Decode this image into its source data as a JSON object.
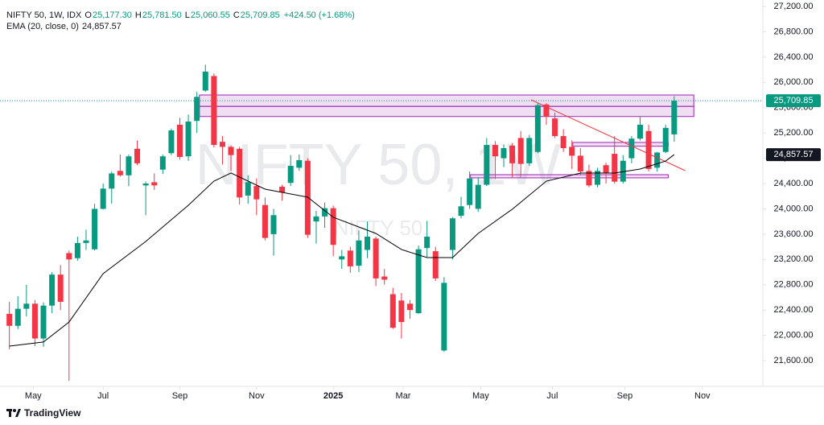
{
  "chart_data": {
    "type": "candlestick",
    "legend_row": [
      {
        "label": "O",
        "value": "25,177.30"
      },
      {
        "label": "H",
        "value": "25,781.50"
      },
      {
        "label": "L",
        "value": "25,060.55"
      },
      {
        "label": "C",
        "value": "25,709.85"
      }
    ],
    "symbol": "NIFTY 50, 1W, IDX",
    "change": "+424.50 (+1.68%)",
    "watermark": "NIFTY 50, 1W",
    "watermark_sub": "NIFTY 50",
    "footer": "TradingView",
    "up_color": "#089981",
    "down_color": "#f23645",
    "grid": false,
    "xlim": [
      -1.1,
      88.4
    ],
    "ylim": [
      21193,
      27302
    ],
    "xticks": [
      {
        "value": 2.8,
        "label": "May"
      },
      {
        "value": 11.0,
        "label": "Jul"
      },
      {
        "value": 20.0,
        "label": "Sep"
      },
      {
        "value": 29.0,
        "label": "Nov"
      },
      {
        "value": 38.0,
        "label": "2025"
      },
      {
        "value": 46.2,
        "label": "Mar"
      },
      {
        "value": 55.3,
        "label": "May"
      },
      {
        "value": 63.7,
        "label": "Jul"
      },
      {
        "value": 72.2,
        "label": "Sep"
      },
      {
        "value": 81.3,
        "label": "Nov"
      }
    ],
    "yticks": [
      {
        "value": 21600,
        "label": "21,600.00"
      },
      {
        "value": 22000,
        "label": "22,000.00"
      },
      {
        "value": 22400,
        "label": "22,400.00"
      },
      {
        "value": 22800,
        "label": "22,800.00"
      },
      {
        "value": 23200,
        "label": "23,200.00"
      },
      {
        "value": 23600,
        "label": "23,600.00"
      },
      {
        "value": 24000,
        "label": "24,000.00"
      },
      {
        "value": 24400,
        "label": "24,400.00"
      },
      {
        "value": 24800,
        "label": "24,800.00"
      },
      {
        "value": 25200,
        "label": "25,200.00"
      },
      {
        "value": 25600,
        "label": "25,600.00"
      },
      {
        "value": 26000,
        "label": "26,000.00"
      },
      {
        "value": 26400,
        "label": "26,400.00"
      },
      {
        "value": 26800,
        "label": "26,800.00"
      },
      {
        "value": 27200,
        "label": "27,200.00"
      }
    ],
    "ohlc": [
      [
        22340,
        22530,
        21780,
        22150
      ],
      [
        22150,
        22620,
        22100,
        22420
      ],
      [
        22420,
        22800,
        22300,
        22500
      ],
      [
        22500,
        22560,
        21830,
        21950
      ],
      [
        21950,
        22520,
        21820,
        22470
      ],
      [
        22470,
        23000,
        22350,
        22960
      ],
      [
        22960,
        23110,
        22400,
        22530
      ],
      [
        23300,
        23340,
        21280,
        23200
      ],
      [
        23220,
        23560,
        23180,
        23460
      ],
      [
        23460,
        23670,
        23350,
        23500
      ],
      [
        23360,
        24080,
        23340,
        24000
      ],
      [
        24000,
        24400,
        23990,
        24320
      ],
      [
        24320,
        24590,
        24080,
        24560
      ],
      [
        24600,
        24860,
        24510,
        24530
      ],
      [
        24530,
        24860,
        24360,
        24830
      ],
      [
        24950,
        25080,
        24690,
        24720
      ],
      [
        24370,
        24430,
        23900,
        24400
      ],
      [
        24420,
        24560,
        24300,
        24370
      ],
      [
        24620,
        24860,
        24550,
        24830
      ],
      [
        24880,
        25270,
        24850,
        25240
      ],
      [
        25330,
        25440,
        24780,
        24820
      ],
      [
        24830,
        25490,
        24760,
        25380
      ],
      [
        25390,
        25850,
        25200,
        25770
      ],
      [
        25870,
        26280,
        25850,
        26170
      ],
      [
        26100,
        26140,
        24970,
        25010
      ],
      [
        25060,
        25150,
        24700,
        24980
      ],
      [
        24980,
        25000,
        24600,
        24850
      ],
      [
        24950,
        24980,
        24070,
        24180
      ],
      [
        24210,
        24530,
        24080,
        24420
      ],
      [
        24360,
        24480,
        23900,
        24150
      ],
      [
        24060,
        24180,
        23500,
        23540
      ],
      [
        23600,
        24000,
        23260,
        23900
      ],
      [
        24350,
        24380,
        24130,
        24260
      ],
      [
        24410,
        24850,
        24360,
        24680
      ],
      [
        24650,
        24860,
        24600,
        24770
      ],
      [
        24760,
        24800,
        23540,
        23590
      ],
      [
        23800,
        23970,
        23450,
        23880
      ],
      [
        23880,
        24100,
        23700,
        24010
      ],
      [
        24010,
        24050,
        23250,
        23430
      ],
      [
        23200,
        23350,
        23050,
        23250
      ],
      [
        23340,
        23400,
        22990,
        23090
      ],
      [
        23100,
        23660,
        23000,
        23500
      ],
      [
        23350,
        23800,
        23220,
        23560
      ],
      [
        23530,
        23560,
        22780,
        22900
      ],
      [
        22930,
        23050,
        22800,
        22880
      ],
      [
        22650,
        22750,
        22100,
        22120
      ],
      [
        22550,
        22670,
        21950,
        22210
      ],
      [
        22500,
        22560,
        22260,
        22400
      ],
      [
        22350,
        23420,
        22340,
        23360
      ],
      [
        23380,
        23810,
        23240,
        23560
      ],
      [
        23330,
        23400,
        22860,
        22900
      ],
      [
        21760,
        22920,
        21740,
        22830
      ],
      [
        23350,
        23870,
        23200,
        23850
      ],
      [
        23890,
        24190,
        23850,
        24040
      ],
      [
        24060,
        24590,
        24000,
        24480
      ],
      [
        24000,
        24500,
        23950,
        24380
      ],
      [
        24380,
        25120,
        24360,
        25010
      ],
      [
        25010,
        25070,
        24470,
        24830
      ],
      [
        24800,
        25020,
        24660,
        24960
      ],
      [
        25000,
        25040,
        24500,
        24720
      ],
      [
        25120,
        25230,
        24500,
        24710
      ],
      [
        24720,
        25170,
        24680,
        25120
      ],
      [
        24900,
        25680,
        24880,
        25640
      ],
      [
        25650,
        25670,
        25330,
        25460
      ],
      [
        25430,
        25520,
        25120,
        25150
      ],
      [
        25150,
        25260,
        24900,
        24960
      ],
      [
        24980,
        25080,
        24630,
        24840
      ],
      [
        24840,
        24960,
        24540,
        24590
      ],
      [
        24600,
        24700,
        24340,
        24370
      ],
      [
        24380,
        24650,
        24340,
        24600
      ],
      [
        24690,
        24730,
        24400,
        24560
      ],
      [
        24870,
        25150,
        24400,
        24430
      ],
      [
        24430,
        24850,
        24400,
        24760
      ],
      [
        24800,
        25150,
        24720,
        25110
      ],
      [
        25110,
        25450,
        25080,
        25330
      ],
      [
        25230,
        25330,
        24590,
        24630
      ],
      [
        24650,
        24900,
        24590,
        24890
      ],
      [
        24900,
        25330,
        24880,
        25280
      ],
      [
        25177.3,
        25781.5,
        25060.55,
        25709.85
      ]
    ],
    "last_price": {
      "value": 25709.85,
      "label": "25,709.85"
    },
    "ema": {
      "name": "EMA (20, close, 0)",
      "color": "#000000",
      "x": [
        0,
        4,
        7,
        11,
        16,
        21,
        24,
        26,
        30,
        35,
        38,
        43,
        46,
        49,
        52,
        55,
        59,
        63,
        67,
        71,
        74,
        77,
        78
      ],
      "values": [
        21830,
        21895,
        22210,
        22975,
        23484,
        24057,
        24438,
        24566,
        24311,
        24184,
        23866,
        23611,
        23357,
        23229,
        23229,
        23611,
        23993,
        24438,
        24566,
        24566,
        24629,
        24756,
        24857.57
      ],
      "value_labels": [
        null,
        null,
        null,
        null,
        null,
        null,
        null,
        null,
        null,
        null,
        null,
        null,
        null,
        null,
        null,
        null,
        null,
        null,
        null,
        null,
        null,
        null,
        "24,857.57"
      ]
    },
    "zones": [
      {
        "x": [
          22.3,
          80.3
        ],
        "y": [
          25620,
          25800
        ],
        "color": "#9c27b0"
      },
      {
        "x": [
          22.3,
          80.3
        ],
        "y": [
          25460,
          25620
        ],
        "color": "#9c27b0"
      },
      {
        "x": [
          66.1,
          77.3
        ],
        "y": [
          24990,
          25050
        ],
        "color": "#9c27b0"
      },
      {
        "x": [
          54.1,
          77.3
        ],
        "y": [
          24490,
          24540
        ],
        "color": "#9c27b0"
      }
    ],
    "trendline": {
      "x": [
        61.2,
        79.3
      ],
      "y": [
        25724,
        24604
      ],
      "color": "#f23645"
    }
  }
}
